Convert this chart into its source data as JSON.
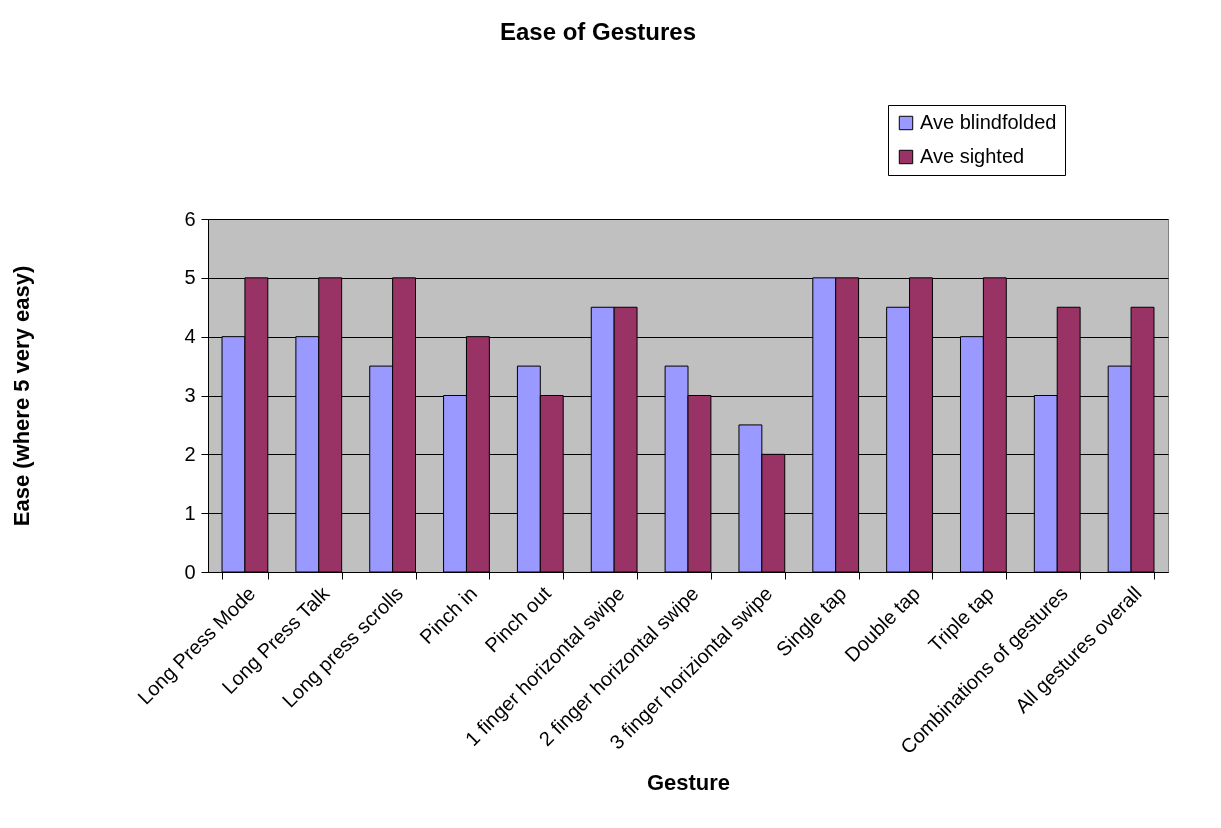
{
  "chart_data": {
    "type": "bar",
    "title": "Ease of Gestures",
    "xlabel": "Gesture",
    "ylabel": "Ease (where 5 very easy)",
    "categories": [
      "Long Press Mode",
      "Long Press Talk",
      "Long press scrolls",
      "Pinch in",
      "Pinch out",
      "1 finger horizontal swipe",
      "2 finger horizontal swipe",
      "3 finger horiziontal swipe",
      "Single tap",
      "Double tap",
      "Triple tap",
      "Combinations of gestures",
      "All gestures overall"
    ],
    "series": [
      {
        "name": "Ave blindfolded",
        "color": "#9999ff",
        "values": [
          4,
          4,
          3.5,
          3,
          3.5,
          4.5,
          3.5,
          2.5,
          5,
          4.5,
          4,
          3,
          3.5
        ]
      },
      {
        "name": "Ave sighted",
        "color": "#993366",
        "values": [
          5,
          5,
          5,
          4,
          3,
          4.5,
          3,
          2,
          5,
          5,
          5,
          4.5,
          4.5
        ]
      }
    ],
    "ylim": [
      0,
      6
    ],
    "yticks": [
      0,
      1,
      2,
      3,
      4,
      5,
      6
    ],
    "grid": "y",
    "legend": "top right"
  }
}
